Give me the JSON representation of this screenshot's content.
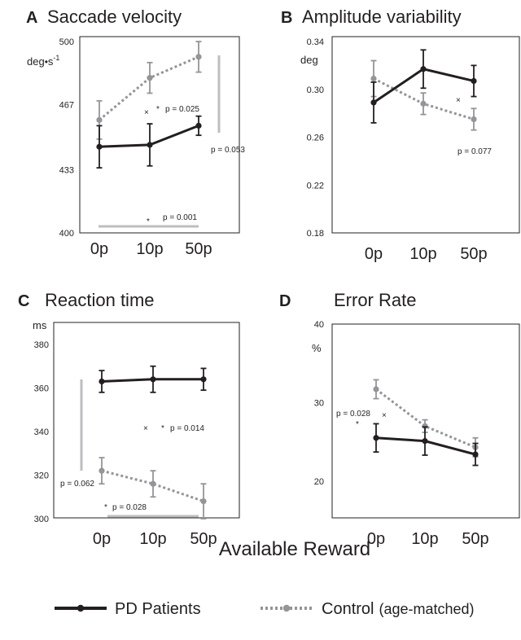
{
  "chart_data": [
    {
      "panel": "A",
      "type": "line",
      "title": "Saccade velocity",
      "unit": "deg•s⁻¹",
      "ylim": [
        400,
        500
      ],
      "yticks": [
        400,
        433,
        467,
        500
      ],
      "categories": [
        "0p",
        "10p",
        "50p"
      ],
      "series": [
        {
          "name": "PD Patients",
          "values": [
            445,
            446,
            456
          ],
          "errors": [
            11,
            11,
            5
          ]
        },
        {
          "name": "Control (age-matched)",
          "values": [
            459,
            481,
            492
          ],
          "errors": [
            10,
            8,
            8
          ]
        }
      ],
      "annotations": [
        {
          "text": "p = 0.025",
          "star": "*",
          "cross": "×"
        },
        {
          "text": "p = 0.053",
          "bar": "vertical"
        },
        {
          "text": "p = 0.001",
          "star": "*",
          "bar": "horizontal"
        }
      ]
    },
    {
      "panel": "B",
      "type": "line",
      "title": "Amplitude variability",
      "unit": "deg",
      "ylim": [
        0.18,
        0.34
      ],
      "yticks": [
        0.18,
        0.22,
        0.26,
        0.3,
        0.34
      ],
      "categories": [
        "0p",
        "10p",
        "50p"
      ],
      "series": [
        {
          "name": "PD Patients",
          "values": [
            0.289,
            0.317,
            0.307
          ],
          "errors": [
            0.017,
            0.016,
            0.013
          ]
        },
        {
          "name": "Control (age-matched)",
          "values": [
            0.309,
            0.288,
            0.275
          ],
          "errors": [
            0.015,
            0.009,
            0.009
          ]
        }
      ],
      "annotations": [
        {
          "text": "p = 0.077",
          "cross": "×"
        }
      ]
    },
    {
      "panel": "C",
      "type": "line",
      "title": "Reaction time",
      "unit": "ms",
      "ylim": [
        300,
        380
      ],
      "yticks": [
        300,
        320,
        340,
        360,
        380
      ],
      "categories": [
        "0p",
        "10p",
        "50p"
      ],
      "series": [
        {
          "name": "PD Patients",
          "values": [
            363,
            364,
            364
          ],
          "errors": [
            5,
            6,
            5
          ]
        },
        {
          "name": "Control (age-matched)",
          "values": [
            322,
            316,
            308
          ],
          "errors": [
            6,
            6,
            8
          ]
        }
      ],
      "annotations": [
        {
          "text": "p = 0.014",
          "star": "*",
          "cross": "×"
        },
        {
          "text": "p = 0.062",
          "bar": "vertical"
        },
        {
          "text": "p = 0.028",
          "star": "*",
          "bar": "horizontal"
        }
      ]
    },
    {
      "panel": "D",
      "type": "line",
      "title": "Error Rate",
      "unit": "%",
      "ylim": [
        15,
        40
      ],
      "yticks": [
        20,
        30,
        40
      ],
      "categories": [
        "0p",
        "10p",
        "50p"
      ],
      "series": [
        {
          "name": "PD Patients",
          "values": [
            25.5,
            25.1,
            23.4
          ],
          "errors": [
            1.8,
            1.8,
            1.4
          ]
        },
        {
          "name": "Control (age-matched)",
          "values": [
            31.7,
            27.0,
            24.3
          ],
          "errors": [
            1.2,
            0.8,
            1.2
          ]
        }
      ],
      "annotations": [
        {
          "text": "p = 0.028",
          "star": "*",
          "cross": "×"
        }
      ]
    }
  ],
  "x_axis_label": "Available Reward",
  "legend": {
    "patients": "PD Patients",
    "control_main": "Control",
    "control_sub": "(age-matched)"
  },
  "colors": {
    "patients": "#231f20",
    "control": "#939598",
    "sigbar": "#bcbec0"
  }
}
